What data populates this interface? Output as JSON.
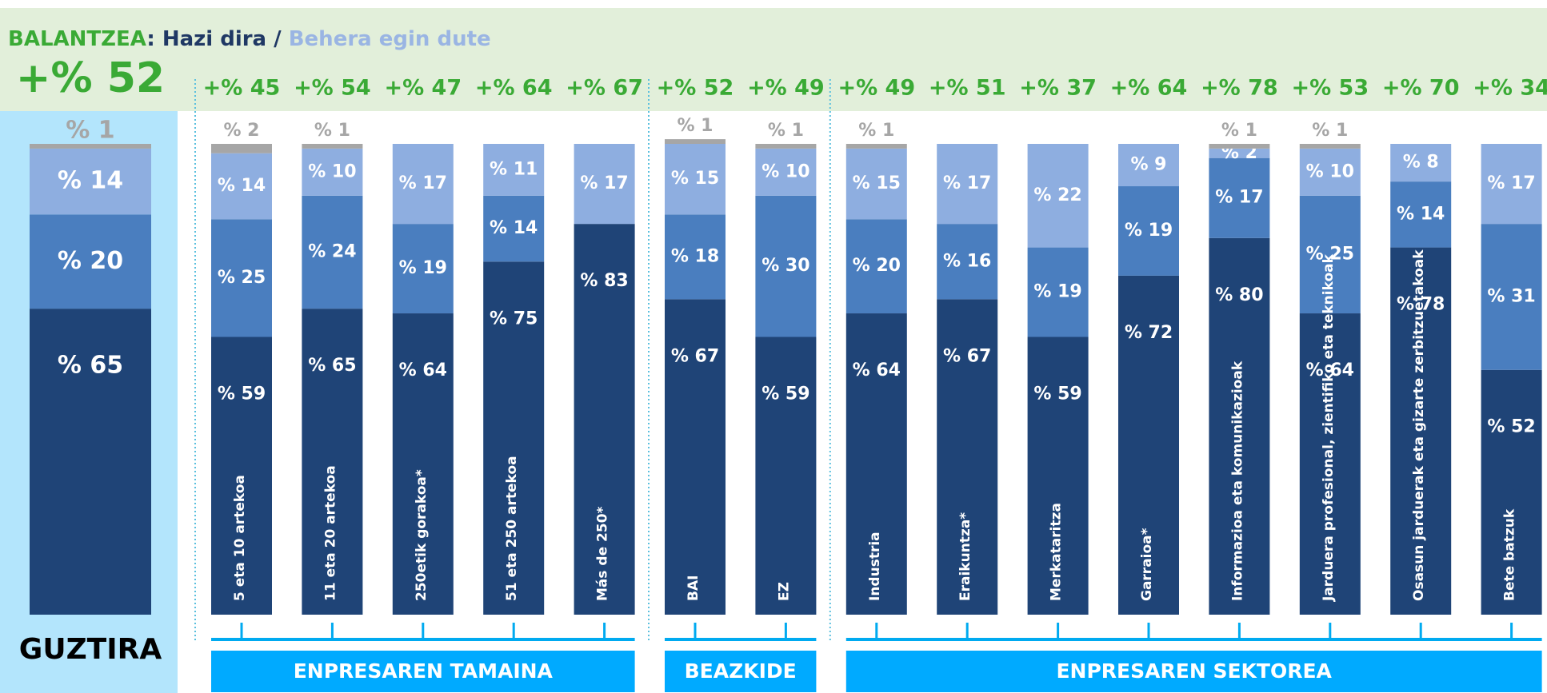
{
  "chart_data": {
    "type": "bar",
    "stacked": true,
    "title": "BALANTZEA",
    "title_separator": ":",
    "legend_separator": "/",
    "categories": [
      "GUZTIRA",
      "5 eta 10 artekoa",
      "11 eta 20 artekoa",
      "250etik gorakoa*",
      "51 eta 250 artekoa",
      "Más de 250*",
      "BAI",
      "EZ",
      "Industria",
      "Eraikuntza*",
      "Merkataritza",
      "Garraioa*",
      "Informazioa eta komunikazioak",
      "Jarduera profesional, zientifiko eta teknikoak",
      "Osasun jarduerak eta gizarte zerbitzuetakoak",
      "Bete batzuk"
    ],
    "series": [
      {
        "name": "Hazi dira",
        "color": "#1f4477",
        "values": [
          65,
          59,
          65,
          64,
          75,
          83,
          67,
          59,
          64,
          67,
          59,
          72,
          80,
          64,
          78,
          52
        ],
        "value_labels": [
          "% 65",
          "% 59",
          "% 65",
          "% 64",
          "% 75",
          "% 83",
          "% 67",
          "% 59",
          "% 64",
          "% 67",
          "% 59",
          "% 72",
          "% 80",
          "% 64",
          "% 78",
          "% 52"
        ]
      },
      {
        "color": "#4a7ebf",
        "values": [
          20,
          25,
          24,
          19,
          14,
          null,
          18,
          30,
          20,
          16,
          19,
          19,
          17,
          25,
          14,
          31
        ],
        "value_labels": [
          "% 20",
          "% 25",
          "% 24",
          "% 19",
          "% 14",
          null,
          "% 18",
          "% 30",
          "% 20",
          "% 16",
          "% 19",
          "% 19",
          "% 17",
          "% 25",
          "% 14",
          "% 31"
        ]
      },
      {
        "name": "Behera egin dute",
        "color": "#8eaee0",
        "values": [
          14,
          14,
          10,
          17,
          11,
          17,
          15,
          10,
          15,
          17,
          22,
          9,
          2,
          10,
          8,
          17
        ],
        "value_labels": [
          "% 14",
          "% 14",
          "% 10",
          "% 17",
          "% 11",
          "% 17",
          "% 15",
          "% 10",
          "% 15",
          "% 17",
          "% 22",
          "% 9",
          "% 2",
          "% 10",
          "% 8",
          "% 17"
        ]
      },
      {
        "color": "#a6a6a6",
        "values": [
          1,
          2,
          1,
          null,
          null,
          null,
          1,
          1,
          1,
          null,
          null,
          null,
          1,
          1,
          null,
          null
        ],
        "value_labels": [
          "% 1",
          "% 2",
          "% 1",
          null,
          null,
          null,
          "% 1",
          "% 1",
          "% 1",
          null,
          null,
          null,
          "% 1",
          "% 1",
          null,
          null
        ]
      }
    ],
    "balance": {
      "values": [
        52,
        45,
        54,
        47,
        64,
        67,
        52,
        49,
        49,
        51,
        37,
        64,
        78,
        53,
        70,
        34
      ],
      "value_labels": [
        "+% 52",
        "+% 45",
        "+% 54",
        "+% 47",
        "+% 64",
        "+% 67",
        "+% 52",
        "+% 49",
        "+% 49",
        "+% 51",
        "+% 37",
        "+% 64",
        "+% 78",
        "+% 53",
        "+% 70",
        "+% 34"
      ],
      "color": "#3aaa35"
    },
    "ylim": [
      0,
      100
    ],
    "groups": [
      {
        "label": "ENPRESAREN TAMAINA",
        "members": 5
      },
      {
        "label": "BEAZKIDE",
        "members": 2
      },
      {
        "label": "ENPRESAREN SEKTOREA",
        "members": 8
      }
    ]
  }
}
